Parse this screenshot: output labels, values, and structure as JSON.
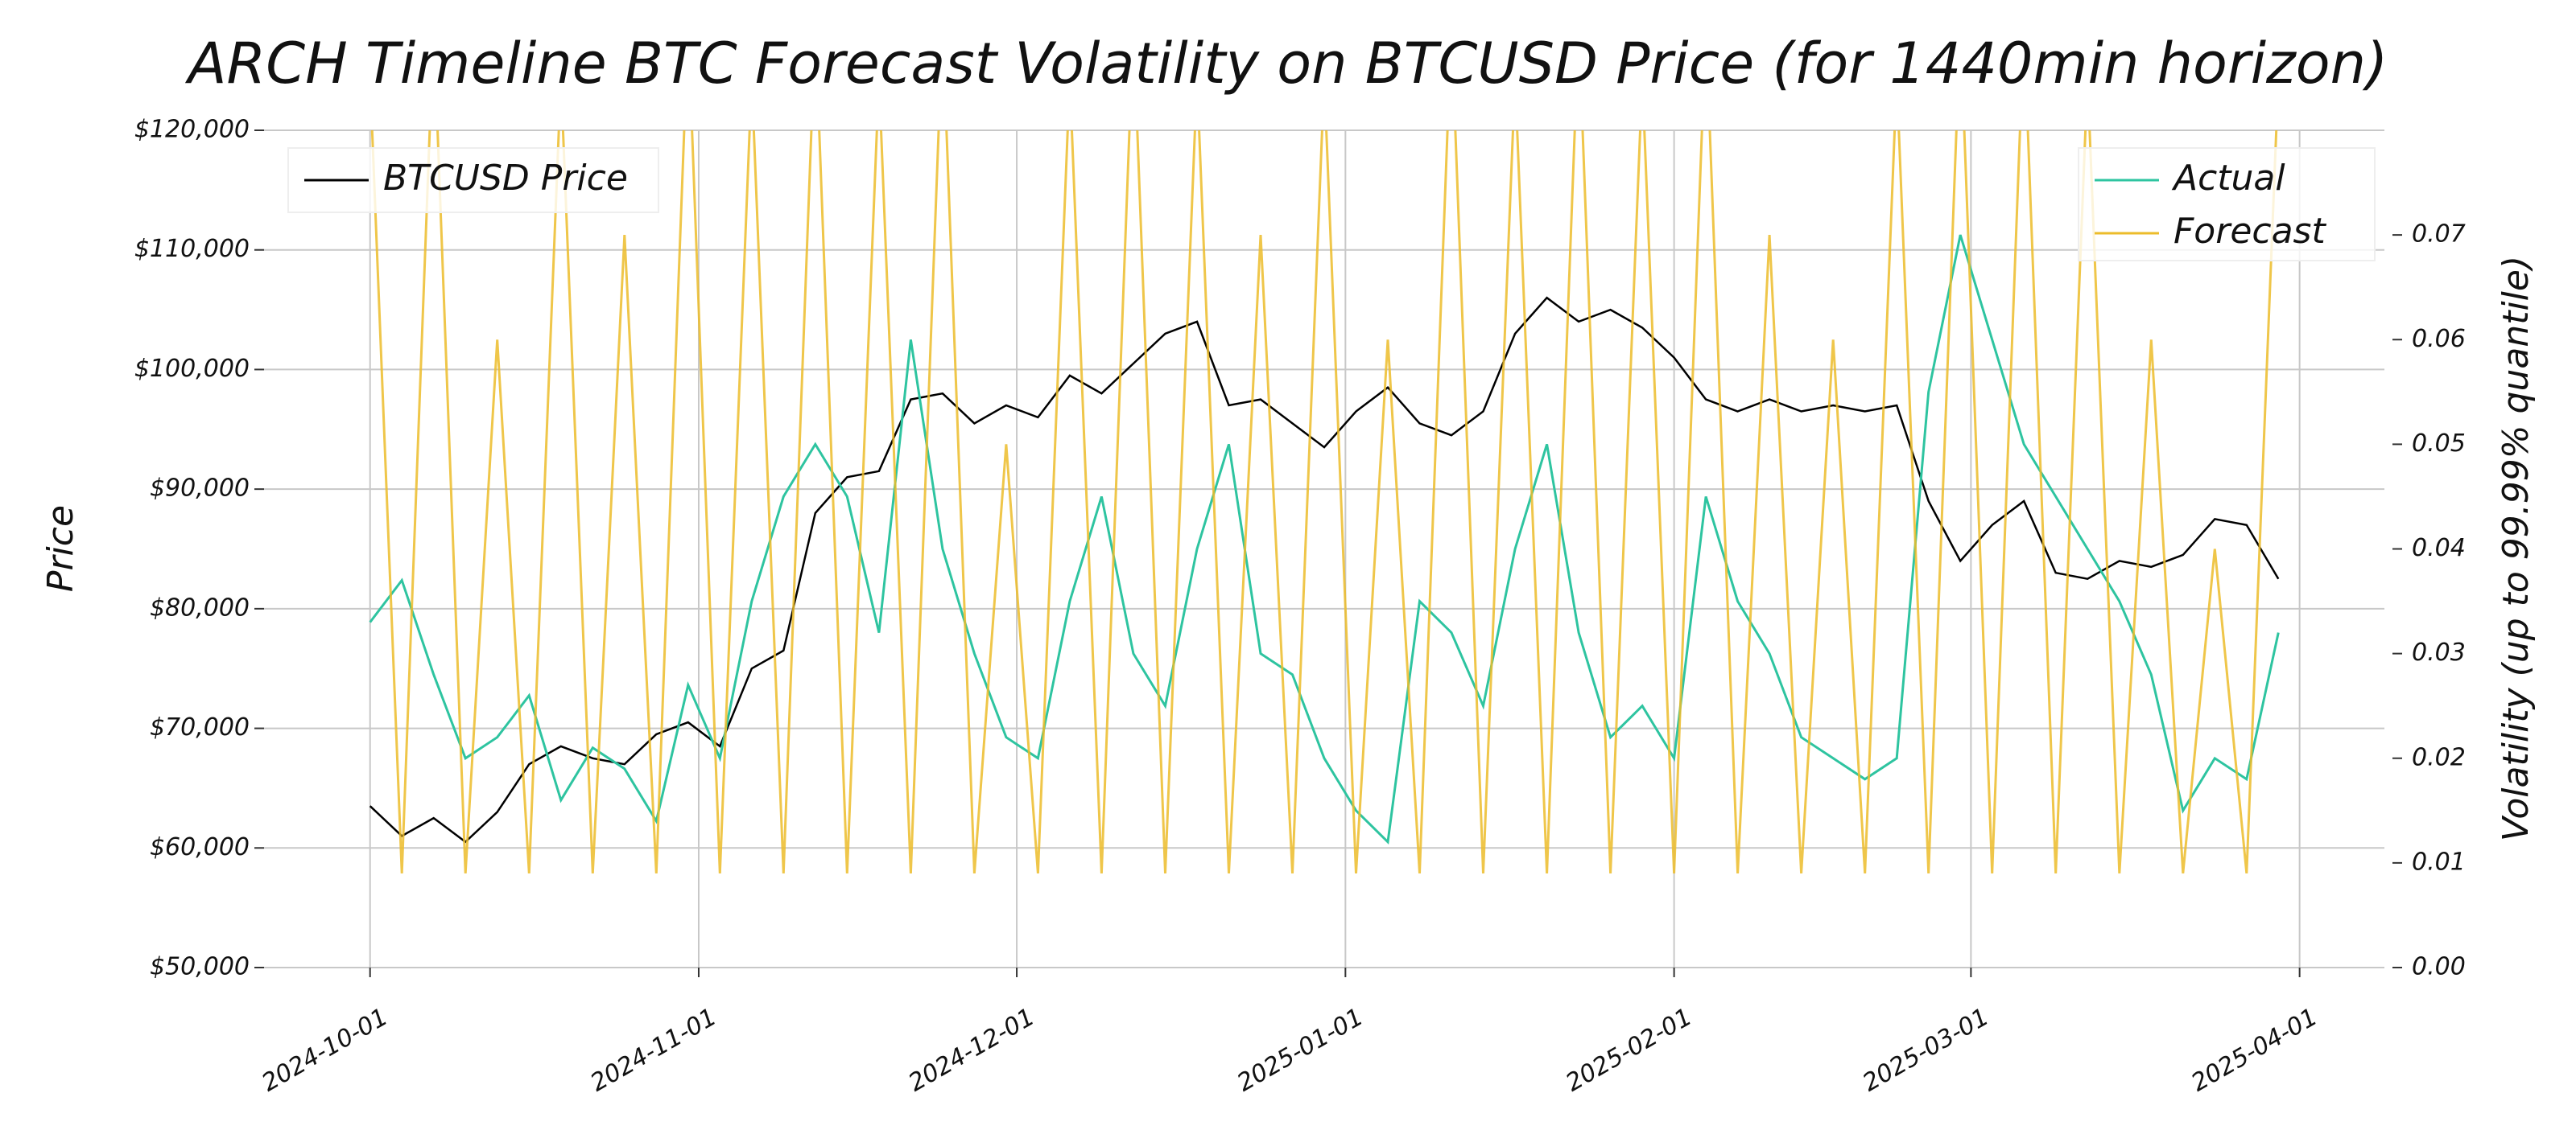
{
  "chart_data": {
    "type": "line",
    "title": "ARCH Timeline BTC Forecast Volatility on BTCUSD Price (for 1440min horizon)",
    "y_label": "Price",
    "y2_label": "Volatility (up to 99.99% quantile)",
    "x": [
      "2024-10-01",
      "2024-10-04",
      "2024-10-07",
      "2024-10-10",
      "2024-10-13",
      "2024-10-16",
      "2024-10-19",
      "2024-10-22",
      "2024-10-25",
      "2024-10-28",
      "2024-10-31",
      "2024-11-03",
      "2024-11-06",
      "2024-11-09",
      "2024-11-12",
      "2024-11-15",
      "2024-11-18",
      "2024-11-21",
      "2024-11-24",
      "2024-11-27",
      "2024-11-30",
      "2024-12-03",
      "2024-12-06",
      "2024-12-09",
      "2024-12-12",
      "2024-12-15",
      "2024-12-18",
      "2024-12-21",
      "2024-12-24",
      "2024-12-27",
      "2024-12-30",
      "2025-01-02",
      "2025-01-05",
      "2025-01-08",
      "2025-01-11",
      "2025-01-14",
      "2025-01-17",
      "2025-01-20",
      "2025-01-23",
      "2025-01-26",
      "2025-01-29",
      "2025-02-01",
      "2025-02-04",
      "2025-02-07",
      "2025-02-10",
      "2025-02-13",
      "2025-02-16",
      "2025-02-19",
      "2025-02-22",
      "2025-02-25",
      "2025-02-28",
      "2025-03-03",
      "2025-03-06",
      "2025-03-09",
      "2025-03-12",
      "2025-03-15",
      "2025-03-18",
      "2025-03-21",
      "2025-03-24",
      "2025-03-27",
      "2025-03-30"
    ],
    "series": [
      {
        "name": "BTCUSD Price",
        "color": "#000000",
        "axis": "y",
        "values": [
          63500,
          61000,
          62500,
          60500,
          63000,
          67000,
          68500,
          67500,
          67000,
          69500,
          70500,
          68500,
          75000,
          76500,
          88000,
          91000,
          91500,
          97500,
          98000,
          95500,
          97000,
          96000,
          99500,
          98000,
          100500,
          103000,
          104000,
          97000,
          97500,
          95500,
          93500,
          96500,
          98500,
          95500,
          94500,
          96500,
          103000,
          106000,
          104000,
          105000,
          103500,
          101000,
          97500,
          96500,
          97500,
          96500,
          97000,
          96500,
          97000,
          89000,
          84000,
          87000,
          89000,
          83000,
          82500,
          84000,
          83500,
          84500,
          87500,
          87000,
          82500
        ]
      },
      {
        "name": "Actual",
        "color": "#2ec4a0",
        "axis": "y2",
        "values": [
          0.033,
          0.037,
          0.028,
          0.02,
          0.022,
          0.026,
          0.016,
          0.021,
          0.019,
          0.014,
          0.027,
          0.02,
          0.035,
          0.045,
          0.05,
          0.045,
          0.032,
          0.06,
          0.04,
          0.03,
          0.022,
          0.02,
          0.035,
          0.045,
          0.03,
          0.025,
          0.04,
          0.05,
          0.03,
          0.028,
          0.02,
          0.015,
          0.012,
          0.035,
          0.032,
          0.025,
          0.04,
          0.05,
          0.032,
          0.022,
          0.025,
          0.02,
          0.045,
          0.035,
          0.03,
          0.022,
          0.02,
          0.018,
          0.02,
          0.055,
          0.07,
          0.06,
          0.05,
          0.045,
          0.04,
          0.035,
          0.028,
          0.015,
          0.02,
          0.018,
          0.032
        ]
      },
      {
        "name": "Forecast",
        "color": "#ecbc2a",
        "axis": "y2",
        "values": [
          0.085,
          0.009,
          0.09,
          0.009,
          0.06,
          0.009,
          0.085,
          0.009,
          0.07,
          0.009,
          0.09,
          0.009,
          0.085,
          0.009,
          0.09,
          0.009,
          0.085,
          0.009,
          0.09,
          0.009,
          0.05,
          0.009,
          0.085,
          0.009,
          0.09,
          0.009,
          0.085,
          0.009,
          0.07,
          0.009,
          0.085,
          0.009,
          0.06,
          0.009,
          0.09,
          0.009,
          0.085,
          0.009,
          0.09,
          0.009,
          0.085,
          0.009,
          0.09,
          0.009,
          0.07,
          0.009,
          0.06,
          0.009,
          0.085,
          0.009,
          0.09,
          0.009,
          0.09,
          0.009,
          0.085,
          0.009,
          0.06,
          0.009,
          0.04,
          0.009,
          0.085
        ]
      }
    ],
    "xlim": [
      "2024-09-21",
      "2025-04-09"
    ],
    "xticks": [
      "2024-10-01",
      "2024-11-01",
      "2024-12-01",
      "2025-01-01",
      "2025-02-01",
      "2025-03-01",
      "2025-04-01"
    ],
    "ylim": [
      50000,
      120000
    ],
    "yticks": [
      {
        "value": 50000,
        "label": "$50,000"
      },
      {
        "value": 60000,
        "label": "$60,000"
      },
      {
        "value": 70000,
        "label": "$70,000"
      },
      {
        "value": 80000,
        "label": "$80,000"
      },
      {
        "value": 90000,
        "label": "$90,000"
      },
      {
        "value": 100000,
        "label": "$100,000"
      },
      {
        "value": 110000,
        "label": "$110,000"
      },
      {
        "value": 120000,
        "label": "$120,000"
      }
    ],
    "y2lim": [
      0,
      0.08
    ],
    "y2ticks": [
      {
        "value": 0,
        "label": "0.00"
      },
      0.01,
      0.02,
      0.03,
      0.04,
      0.05,
      0.06,
      0.07
    ],
    "grid": true
  }
}
